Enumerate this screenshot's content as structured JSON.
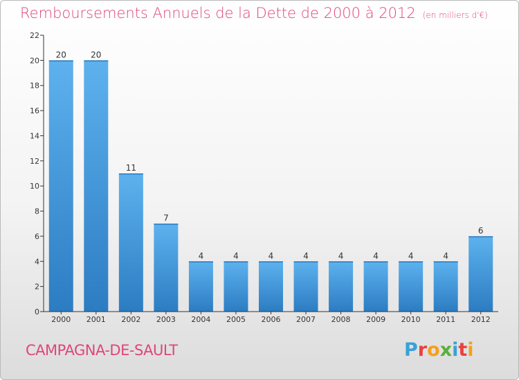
{
  "header": {
    "title": "Remboursements Annuels de la Dette de 2000 à 2012",
    "unit": "(en milliers d'€)"
  },
  "footer": {
    "commune": "CAMPAGNA-DE-SAULT",
    "logo_letters": [
      "P",
      "r",
      "o",
      "x",
      "i",
      "t",
      "i"
    ],
    "logo_colors": [
      "#3aa0d8",
      "#e8413f",
      "#f4a01c",
      "#5aae3a",
      "#3aa0d8",
      "#e8413f",
      "#f4a01c"
    ]
  },
  "colors": {
    "bar": "#3e93d8",
    "bar_light": "#5cb0ec",
    "bar_dark": "#2a78bd",
    "title": "#e0457b",
    "axis": "#333333"
  },
  "chart_data": {
    "type": "bar",
    "categories": [
      "2000",
      "2001",
      "2002",
      "2003",
      "2004",
      "2005",
      "2006",
      "2007",
      "2008",
      "2009",
      "2010",
      "2011",
      "2012"
    ],
    "values": [
      20,
      20,
      11,
      7,
      4,
      4,
      4,
      4,
      4,
      4,
      4,
      4,
      6
    ],
    "title": "Remboursements Annuels de la Dette de 2000 à 2012",
    "ylim": [
      0,
      22
    ],
    "yticks": [
      0,
      2,
      4,
      6,
      8,
      10,
      12,
      14,
      16,
      18,
      20,
      22
    ],
    "grid": false,
    "data_labels": true
  }
}
